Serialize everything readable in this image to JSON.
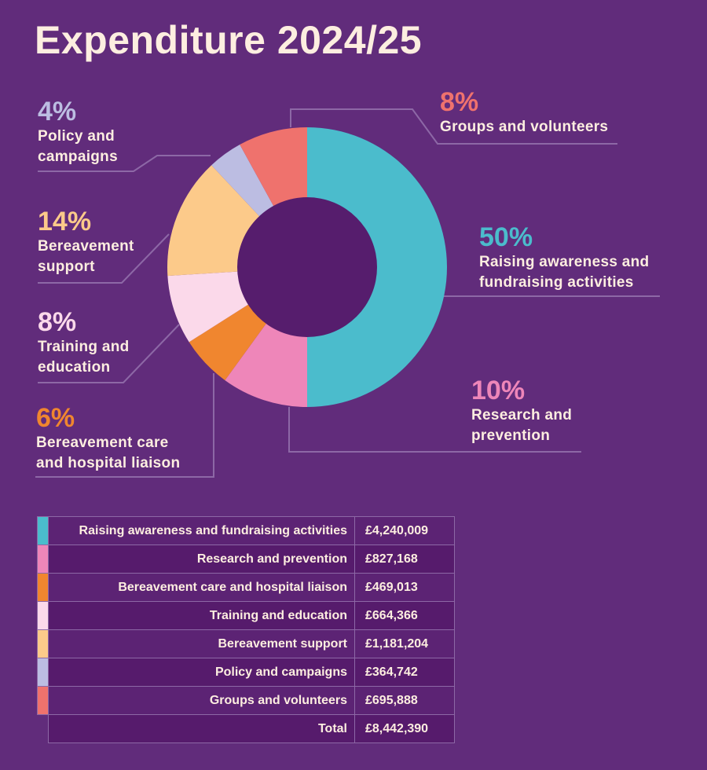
{
  "chart_data": {
    "type": "pie",
    "title": "Expenditure 2024/25",
    "categories": [
      "Raising awareness and fundraising activities",
      "Research and prevention",
      "Bereavement care and hospital liaison",
      "Training and education",
      "Bereavement support",
      "Policy and campaigns",
      "Groups and volunteers"
    ],
    "values": [
      50,
      10,
      6,
      8,
      14,
      4,
      8
    ],
    "value_labels": [
      "50%",
      "10%",
      "6%",
      "8%",
      "14%",
      "4%",
      "8%"
    ],
    "colors": [
      "#4bbccc",
      "#ee86b9",
      "#f0862f",
      "#fbd9ea",
      "#fcca8a",
      "#bcbde2",
      "#ef726d"
    ]
  },
  "table": {
    "amounts": [
      "£4,240,009",
      "£827,168",
      "£469,013",
      "£664,366",
      "£1,181,204",
      "£364,742",
      "£695,888"
    ],
    "total_label": "Total",
    "total": "£8,442,390"
  }
}
